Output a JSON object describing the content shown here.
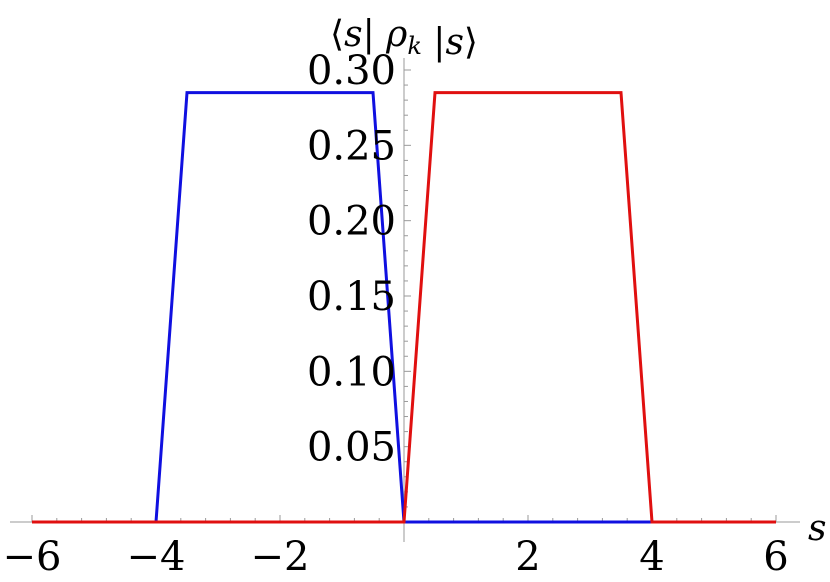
{
  "chart_data": {
    "type": "line",
    "title": "",
    "xlabel": "s",
    "ylabel": "⟨s| ρ_k |s⟩",
    "xlim": [
      -6.1,
      6.7
    ],
    "ylim": [
      0,
      0.3
    ],
    "x_ticks": [
      {
        "value": -6,
        "label": "−6"
      },
      {
        "value": -4,
        "label": "−4"
      },
      {
        "value": -2,
        "label": "−2"
      },
      {
        "value": 2,
        "label": "2"
      },
      {
        "value": 4,
        "label": "4"
      },
      {
        "value": 6,
        "label": "6"
      }
    ],
    "y_ticks": [
      {
        "value": 0.05,
        "label": "0.05"
      },
      {
        "value": 0.1,
        "label": "0.10"
      },
      {
        "value": 0.15,
        "label": "0.15"
      },
      {
        "value": 0.2,
        "label": "0.20"
      },
      {
        "value": 0.25,
        "label": "0.25"
      },
      {
        "value": 0.3,
        "label": "0.30"
      }
    ],
    "grid": false,
    "series": [
      {
        "color": "#1010e0",
        "x": [
          -6,
          -4,
          -3.5,
          -0.5,
          0,
          6
        ],
        "y": [
          0,
          0,
          0.285,
          0.285,
          0,
          0
        ]
      },
      {
        "color": "#e01010",
        "x": [
          -6,
          0,
          0.5,
          3.5,
          4,
          6
        ],
        "y": [
          0,
          0,
          0.285,
          0.285,
          0,
          0
        ]
      }
    ]
  }
}
